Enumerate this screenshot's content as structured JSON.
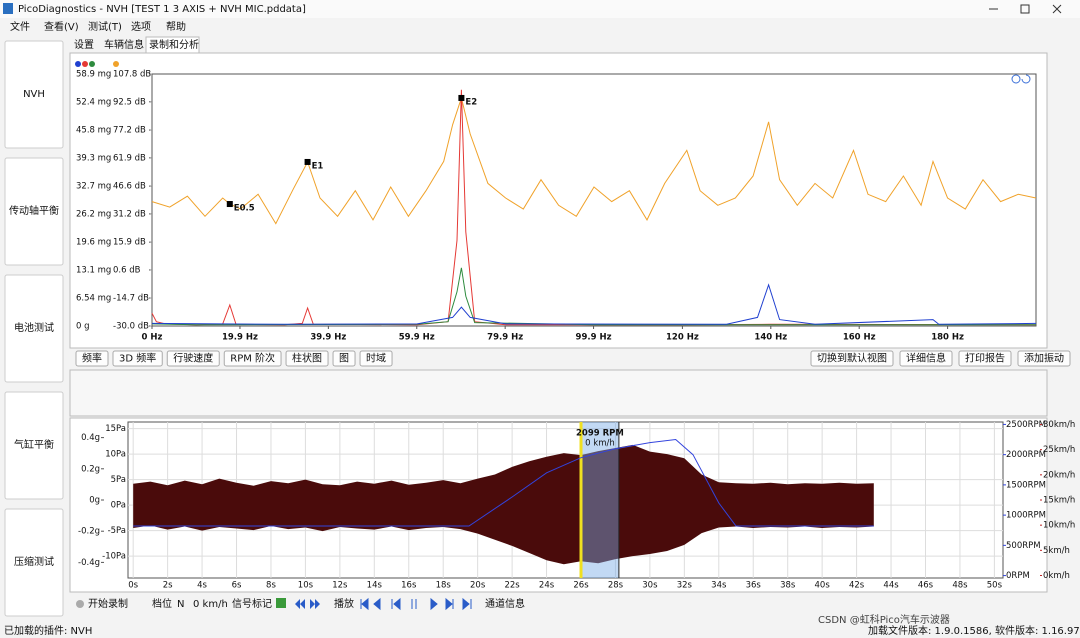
{
  "window": {
    "title": "PicoDiagnostics - NVH [TEST 1 3 AXIS + NVH MIC.pddata]"
  },
  "menu": [
    "文件",
    "查看(V)",
    "测试(T)",
    "选项",
    "帮助"
  ],
  "sidebar": [
    "NVH",
    "传动轴平衡",
    "电池测试",
    "气缸平衡",
    "压缩测试"
  ],
  "tabs": [
    "设置",
    "车辆信息",
    "录制和分析"
  ],
  "spectrum": {
    "type": "line",
    "xlim": [
      0,
      200
    ],
    "xticks": [
      {
        "value": 0,
        "label": "0 Hz"
      },
      {
        "value": 19.9,
        "label": "19.9 Hz"
      },
      {
        "value": 39.9,
        "label": "39.9 Hz"
      },
      {
        "value": 59.9,
        "label": "59.9 Hz"
      },
      {
        "value": 79.9,
        "label": "79.9 Hz"
      },
      {
        "value": 99.9,
        "label": "99.9 Hz"
      },
      {
        "value": 120,
        "label": "120 Hz"
      },
      {
        "value": 140,
        "label": "140 Hz"
      },
      {
        "value": 160,
        "label": "160 Hz"
      },
      {
        "value": 180,
        "label": "180 Hz"
      }
    ],
    "ylim": [
      0,
      58.9
    ],
    "yticks": [
      {
        "value": 0,
        "label": "0 g"
      },
      {
        "value": 6.54,
        "label": "6.54 mg"
      },
      {
        "value": 13.1,
        "label": "13.1 mg"
      },
      {
        "value": 19.6,
        "label": "19.6 mg"
      },
      {
        "value": 26.2,
        "label": "26.2 mg"
      },
      {
        "value": 32.7,
        "label": "32.7 mg"
      },
      {
        "value": 39.3,
        "label": "39.3 mg"
      },
      {
        "value": 45.8,
        "label": "45.8 mg"
      },
      {
        "value": 52.4,
        "label": "52.4 mg"
      },
      {
        "value": 58.9,
        "label": "58.9 mg"
      }
    ],
    "y2lim": [
      -30,
      107.8
    ],
    "y2ticks": [
      {
        "value": -30,
        "label": "-30.0 dB"
      },
      {
        "value": -14.7,
        "label": "-14.7 dB"
      },
      {
        "value": 0.6,
        "label": "0.6 dB"
      },
      {
        "value": 15.9,
        "label": "15.9 dB"
      },
      {
        "value": 31.2,
        "label": "31.2 dB"
      },
      {
        "value": 46.6,
        "label": "46.6 dB"
      },
      {
        "value": 61.9,
        "label": "61.9 dB"
      },
      {
        "value": 77.2,
        "label": "77.2 dB"
      },
      {
        "value": 92.5,
        "label": "92.5 dB"
      },
      {
        "value": 107.8,
        "label": "107.8 dB"
      }
    ],
    "series": [
      {
        "color": "#f0a22a",
        "axis": "y2",
        "x": [
          0,
          4,
          8,
          12,
          16,
          17.6,
          20,
          24,
          28,
          32,
          35.2,
          38,
          42,
          46,
          50,
          54,
          58,
          62,
          66,
          68,
          70,
          72,
          76,
          80,
          84,
          88,
          92,
          96,
          100,
          104,
          108,
          112,
          116,
          121,
          124,
          128,
          132,
          136,
          139.5,
          142,
          146,
          150,
          154,
          158.7,
          162,
          166,
          170,
          174,
          176.7,
          180,
          184,
          188,
          192,
          196,
          200
        ],
        "values": [
          38,
          35,
          41,
          30,
          40,
          36.7,
          34,
          42,
          26,
          45,
          59.7,
          40,
          30,
          44,
          28,
          46,
          30,
          44,
          60,
          80,
          94.7,
          75,
          48,
          40,
          34,
          50,
          36,
          30,
          46,
          38,
          44,
          28,
          48,
          66,
          44,
          36,
          40,
          52,
          81.6,
          50,
          36,
          48,
          40,
          66,
          42,
          38,
          52,
          36,
          60,
          40,
          34,
          50,
          38,
          42,
          40
        ]
      },
      {
        "color": "#e53935",
        "x": [
          0,
          1,
          3,
          10,
          16,
          17.6,
          19,
          30,
          34,
          35.2,
          36.5,
          60,
          67,
          69,
          70,
          71,
          73,
          80,
          120,
          140,
          200
        ],
        "values": [
          3,
          1,
          0.5,
          0.3,
          0.5,
          4.9,
          0.4,
          0.3,
          0.6,
          4.2,
          0.4,
          0.3,
          1,
          20,
          55.2,
          22,
          1,
          0.3,
          0.3,
          0.4,
          0.3
        ]
      },
      {
        "color": "#2e8b3e",
        "x": [
          0,
          10,
          60,
          67,
          69,
          70,
          71,
          73,
          100,
          200
        ],
        "values": [
          0.5,
          0.3,
          0.4,
          1,
          8,
          13.6,
          7,
          0.8,
          0.3,
          0.3
        ]
      },
      {
        "color": "#2040d0",
        "x": [
          0,
          30,
          60,
          68,
          70,
          72,
          80,
          130,
          137,
          139.5,
          142,
          150,
          176.7,
          178,
          200
        ],
        "values": [
          0.6,
          0.4,
          0.5,
          2,
          4.4,
          2,
          0.5,
          0.4,
          2,
          9.6,
          1.5,
          0.4,
          1.5,
          0.4,
          0.6
        ]
      }
    ],
    "markers": [
      {
        "label": "E0.5",
        "x": 17.6,
        "value": 36.7
      },
      {
        "label": "E1",
        "x": 35.2,
        "value": 59.7
      },
      {
        "label": "E2",
        "x": 70,
        "value": 94.7
      }
    ]
  },
  "view_buttons": [
    "频率",
    "3D 频率",
    "行驶速度",
    "RPM 阶次",
    "柱状图",
    "图",
    "时域"
  ],
  "action_buttons": [
    "切换到默认视图",
    "详细信息",
    "打印报告",
    "添加振动"
  ],
  "time": {
    "type": "area",
    "xlim": [
      -0.3,
      50.5
    ],
    "xticks": [
      {
        "value": 0,
        "label": "0s"
      },
      {
        "value": 2,
        "label": "2s"
      },
      {
        "value": 4,
        "label": "4s"
      },
      {
        "value": 6,
        "label": "6s"
      },
      {
        "value": 8,
        "label": "8s"
      },
      {
        "value": 10,
        "label": "10s"
      },
      {
        "value": 12,
        "label": "12s"
      },
      {
        "value": 14,
        "label": "14s"
      },
      {
        "value": 16,
        "label": "16s"
      },
      {
        "value": 18,
        "label": "18s"
      },
      {
        "value": 20,
        "label": "20s"
      },
      {
        "value": 22,
        "label": "22s"
      },
      {
        "value": 24,
        "label": "24s"
      },
      {
        "value": 26,
        "label": "26s"
      },
      {
        "value": 28,
        "label": "28s"
      },
      {
        "value": 30,
        "label": "30s"
      },
      {
        "value": 32,
        "label": "32s"
      },
      {
        "value": 34,
        "label": "34s"
      },
      {
        "value": 36,
        "label": "36s"
      },
      {
        "value": 38,
        "label": "38s"
      },
      {
        "value": 40,
        "label": "40s"
      },
      {
        "value": 42,
        "label": "42s"
      },
      {
        "value": 44,
        "label": "44s"
      },
      {
        "value": 46,
        "label": "46s"
      },
      {
        "value": 48,
        "label": "48s"
      },
      {
        "value": 50,
        "label": "50s"
      }
    ],
    "ylim": [
      -14.3,
      16.3
    ],
    "yticks": [
      {
        "value": 15,
        "label": "15Pa"
      },
      {
        "value": 10,
        "label": "10Pa"
      },
      {
        "value": 5,
        "label": "5Pa"
      },
      {
        "value": 0,
        "label": "0Pa"
      },
      {
        "value": -5,
        "label": "-5Pa"
      },
      {
        "value": -10,
        "label": "-10Pa"
      }
    ],
    "glim": [
      -0.5,
      0.5
    ],
    "gticks": [
      {
        "value": 0.4,
        "label": "0.4g"
      },
      {
        "value": 0.2,
        "label": "0.2g"
      },
      {
        "value": 0,
        "label": "0g"
      },
      {
        "value": -0.2,
        "label": "-0.2g"
      },
      {
        "value": -0.4,
        "label": "-0.4g"
      }
    ],
    "y2lim": [
      -40,
      2540
    ],
    "y2ticks": [
      {
        "value": 2500,
        "label": "2500RPM"
      },
      {
        "value": 2000,
        "label": "2000RPM"
      },
      {
        "value": 1500,
        "label": "1500RPM"
      },
      {
        "value": 1000,
        "label": "1000RPM"
      },
      {
        "value": 500,
        "label": "500RPM"
      },
      {
        "value": 0,
        "label": "0RPM"
      }
    ],
    "y3lim": [
      -0.5,
      30.5
    ],
    "y3ticks": [
      {
        "value": 30,
        "label": "30km/h"
      },
      {
        "value": 25,
        "label": "25km/h"
      },
      {
        "value": 20,
        "label": "20km/h"
      },
      {
        "value": 15,
        "label": "15km/h"
      },
      {
        "value": 10,
        "label": "10km/h"
      },
      {
        "value": 5,
        "label": "5km/h"
      },
      {
        "value": 0,
        "label": "0km/h"
      }
    ],
    "waveform": {
      "color": "#4a0b0b",
      "x": [
        0,
        1,
        2,
        3,
        4,
        5,
        6,
        7,
        8,
        9,
        10,
        11,
        12,
        13,
        14,
        15,
        16,
        17,
        18,
        19,
        20,
        21,
        22,
        23,
        24,
        25,
        26,
        27,
        28,
        29,
        30,
        31,
        32,
        33,
        34,
        35,
        36,
        37,
        38,
        39,
        40,
        41,
        42,
        43
      ],
      "max": [
        4.2,
        4.6,
        3.9,
        4.8,
        4.1,
        5.2,
        4.4,
        3.8,
        4.7,
        4.3,
        5.0,
        4.1,
        3.9,
        4.6,
        4.2,
        4.8,
        4.0,
        4.4,
        4.9,
        4.3,
        5.2,
        6.0,
        7.5,
        8.6,
        9.5,
        10.2,
        9.8,
        10.6,
        11.2,
        11.8,
        10.5,
        10.0,
        9.2,
        6.0,
        4.5,
        4.3,
        4.2,
        4.4,
        4.1,
        4.3,
        4.2,
        4.4,
        4.2,
        4.3
      ],
      "min": [
        -4.5,
        -4.0,
        -4.8,
        -4.2,
        -5.0,
        -4.3,
        -4.6,
        -4.9,
        -4.1,
        -4.7,
        -4.4,
        -5.1,
        -4.3,
        -4.6,
        -4.8,
        -4.2,
        -4.9,
        -4.5,
        -4.3,
        -4.7,
        -5.6,
        -6.8,
        -8.0,
        -9.4,
        -10.8,
        -11.6,
        -11.0,
        -11.4,
        -10.6,
        -10.0,
        -9.6,
        -9.0,
        -7.8,
        -5.5,
        -4.4,
        -4.2,
        -4.5,
        -4.3,
        -4.4,
        -4.2,
        -4.5,
        -4.3,
        -4.4,
        -4.2
      ]
    },
    "rpm": {
      "color": "#3344dd",
      "x": [
        0,
        19.5,
        22,
        24,
        26,
        28,
        30,
        31.5,
        32.5,
        34,
        35,
        43
      ],
      "values": [
        820,
        820,
        1300,
        1700,
        1950,
        2099,
        2200,
        2250,
        2000,
        1200,
        820,
        820
      ]
    },
    "selection": [
      26,
      28.2
    ],
    "cursor_labels": [
      "2099 RPM",
      "0 km/h"
    ]
  },
  "toolbar": {
    "record": "开始录制",
    "gear_label": "档位",
    "gear": "N",
    "speed": "0 km/h",
    "signal": "信号标记",
    "play": "播放",
    "channel": "通道信息"
  },
  "status": {
    "plugins": "已加载的插件: NVH",
    "version": "加载文件版本: 1.9.0.1586, 软件版本: 1.16.97.0"
  },
  "watermark": "CSDN @虹科Pico汽车示波器"
}
